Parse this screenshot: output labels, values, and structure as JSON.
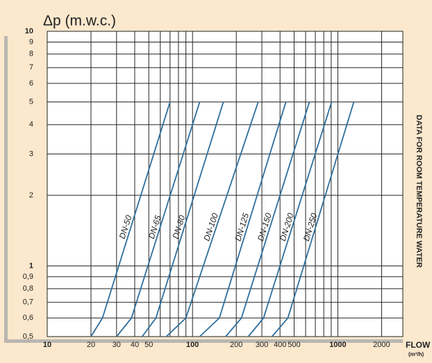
{
  "chart_data": {
    "type": "line",
    "title": "Δp (m.w.c.)",
    "x_label": "FLOW",
    "x_unit": "(m³/h)",
    "side_note": "DATA FOR ROOM TEMPERATURE WATER",
    "log_x": true,
    "log_y": true,
    "grid": true,
    "color": "#2f6e9c",
    "xlim": [
      10,
      2800
    ],
    "ylim": [
      0.5,
      10
    ],
    "xticks": [
      10,
      20,
      30,
      40,
      50,
      100,
      200,
      300,
      400,
      500,
      1000,
      2000
    ],
    "xminor": [
      60,
      70,
      80,
      90,
      600,
      700,
      800,
      900
    ],
    "yticks": [
      {
        "value": 0.5,
        "label": "0,5"
      },
      {
        "value": 0.6,
        "label": "0,6"
      },
      {
        "value": 0.7,
        "label": "0,7"
      },
      {
        "value": 0.8,
        "label": "0,8"
      },
      {
        "value": 0.9,
        "label": "0,9"
      },
      1,
      2,
      3,
      4,
      5,
      6,
      7,
      8,
      9,
      10
    ],
    "series": [
      {
        "name": "DN-50",
        "x": [
          20,
          24,
          70
        ],
        "values": [
          0.5,
          0.6,
          5
        ]
      },
      {
        "name": "DN-65",
        "x": [
          30,
          38,
          112
        ],
        "values": [
          0.5,
          0.6,
          5
        ]
      },
      {
        "name": "DN-80",
        "x": [
          45,
          56,
          163
        ],
        "values": [
          0.5,
          0.6,
          5
        ]
      },
      {
        "name": "DN-100",
        "x": [
          66,
          90,
          283
        ],
        "values": [
          0.5,
          0.6,
          5
        ]
      },
      {
        "name": "DN-125",
        "x": [
          112,
          153,
          439
        ],
        "values": [
          0.5,
          0.6,
          5
        ]
      },
      {
        "name": "DN-150",
        "x": [
          169,
          217,
          637
        ],
        "values": [
          0.5,
          0.6,
          5
        ]
      },
      {
        "name": "DN-200",
        "x": [
          242,
          308,
          906
        ],
        "values": [
          0.5,
          0.6,
          5
        ]
      },
      {
        "name": "DN-250",
        "x": [
          352,
          453,
          1288
        ],
        "values": [
          0.5,
          0.6,
          5
        ]
      }
    ]
  }
}
